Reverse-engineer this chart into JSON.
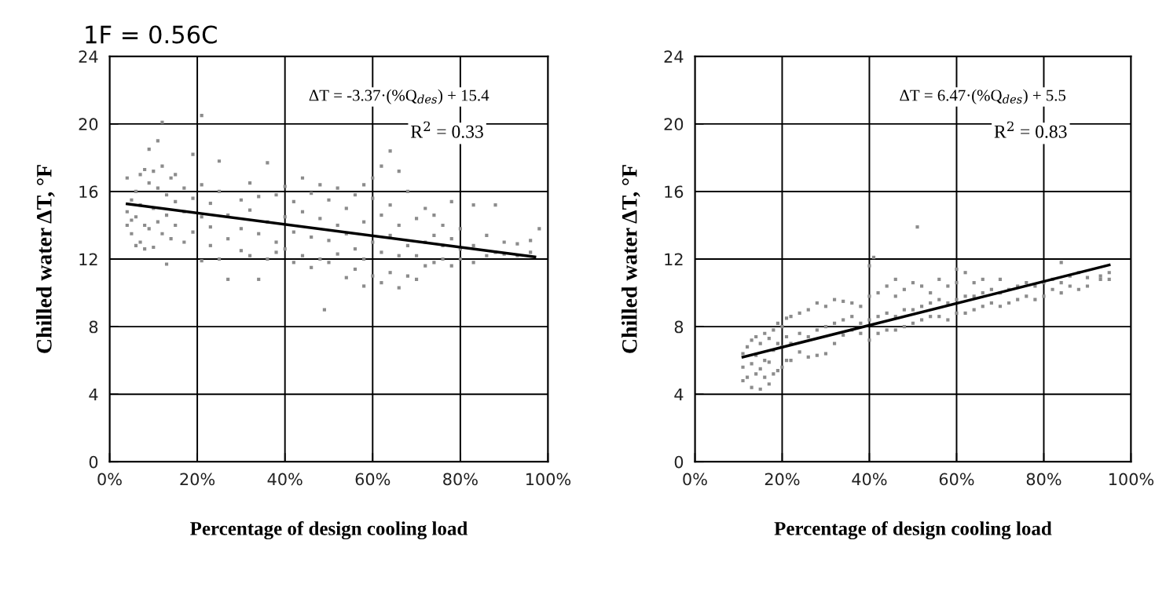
{
  "chart_data": [
    {
      "type": "scatter",
      "title": "1F = 0.56C",
      "xlabel": "Percentage of design cooling load",
      "ylabel": "Chilled water ΔT, °F",
      "xlim": [
        0,
        100
      ],
      "ylim": [
        0,
        24
      ],
      "xticks": [
        {
          "value": 0,
          "label": "0%"
        },
        {
          "value": 20,
          "label": "20%"
        },
        {
          "value": 40,
          "label": "40%"
        },
        {
          "value": 60,
          "label": "60%"
        },
        {
          "value": 80,
          "label": "80%"
        },
        {
          "value": 100,
          "label": "100%"
        }
      ],
      "yticks": [
        0,
        4,
        8,
        12,
        16,
        20,
        24
      ],
      "grid": true,
      "annotations": [
        "ΔT = -3.37·(%Q$_{des}$) + 15.4",
        "R$^{2}$ = 0.33"
      ],
      "series": [
        {
          "color": "#8c8c8c",
          "marker": "square",
          "x": [
            4,
            4,
            4,
            5,
            5,
            5,
            6,
            6,
            6,
            7,
            7,
            7,
            8,
            8,
            8,
            9,
            9,
            9,
            10,
            10,
            10,
            11,
            11,
            11,
            12,
            12,
            12,
            13,
            13,
            13,
            14,
            14,
            15,
            15,
            15,
            17,
            17,
            17,
            19,
            19,
            19,
            21,
            21,
            21,
            21,
            23,
            23,
            23,
            25,
            25,
            25,
            27,
            27,
            27,
            30,
            30,
            30,
            32,
            32,
            32,
            34,
            34,
            34,
            36,
            36,
            36,
            38,
            38,
            38,
            40,
            40,
            40,
            42,
            42,
            42,
            44,
            44,
            44,
            46,
            46,
            46,
            48,
            48,
            48,
            49,
            50,
            50,
            50,
            52,
            52,
            52,
            54,
            54,
            54,
            56,
            56,
            56,
            58,
            58,
            58,
            58,
            60,
            60,
            60,
            60,
            62,
            62,
            62,
            62,
            64,
            64,
            64,
            64,
            66,
            66,
            66,
            66,
            68,
            68,
            68,
            70,
            70,
            70,
            72,
            72,
            72,
            74,
            74,
            74,
            76,
            76,
            76,
            78,
            78,
            78,
            80,
            80,
            80,
            83,
            83,
            83,
            86,
            86,
            88,
            88,
            90,
            90,
            93,
            93,
            96,
            96,
            98
          ],
          "values": [
            14.0,
            14.8,
            16.8,
            13.5,
            15.5,
            14.3,
            12.8,
            16.0,
            14.5,
            13.0,
            17.0,
            15.2,
            12.6,
            17.3,
            14.0,
            13.8,
            16.5,
            18.5,
            12.7,
            15.0,
            17.2,
            14.2,
            16.2,
            19.0,
            13.5,
            17.5,
            20.1,
            11.7,
            15.8,
            14.6,
            13.2,
            16.8,
            14.0,
            17.0,
            15.4,
            13.0,
            16.2,
            14.8,
            13.6,
            15.6,
            18.2,
            11.9,
            14.5,
            16.4,
            20.5,
            12.8,
            15.3,
            13.9,
            12.0,
            16.0,
            17.8,
            13.2,
            14.6,
            10.8,
            12.5,
            15.5,
            13.8,
            12.2,
            14.9,
            16.5,
            10.8,
            13.5,
            15.7,
            12.0,
            14.2,
            17.7,
            13.0,
            15.8,
            12.4,
            12.6,
            14.5,
            16.3,
            11.8,
            13.6,
            15.4,
            12.2,
            14.8,
            16.8,
            11.5,
            13.3,
            15.9,
            12.0,
            14.4,
            16.4,
            9.0,
            11.8,
            13.1,
            15.5,
            12.3,
            14.0,
            16.2,
            10.9,
            13.5,
            15.0,
            11.4,
            12.6,
            15.8,
            10.4,
            12.0,
            14.2,
            16.4,
            11.0,
            13.0,
            15.6,
            16.8,
            10.6,
            12.4,
            14.6,
            17.5,
            11.2,
            13.4,
            15.2,
            18.4,
            10.3,
            12.2,
            14.0,
            17.2,
            11.0,
            12.8,
            16.0,
            10.8,
            12.2,
            14.4,
            11.6,
            13.0,
            15.0,
            11.8,
            13.4,
            14.6,
            12.0,
            12.8,
            14.0,
            11.6,
            13.2,
            15.4,
            12.0,
            12.6,
            13.8,
            11.8,
            12.8,
            15.2,
            12.2,
            13.4,
            12.4,
            15.2,
            12.3,
            13.0,
            12.2,
            12.9,
            12.4,
            13.1,
            13.8
          ]
        },
        {
          "type": "line",
          "color": "#000000",
          "x": [
            4,
            97
          ],
          "values": [
            15.27,
            12.13
          ]
        }
      ]
    },
    {
      "type": "scatter",
      "xlabel": "Percentage of design cooling load",
      "ylabel": "Chilled water ΔT, °F",
      "xlim": [
        0,
        100
      ],
      "ylim": [
        0,
        24
      ],
      "xticks": [
        {
          "value": 0,
          "label": "0%"
        },
        {
          "value": 20,
          "label": "20%"
        },
        {
          "value": 40,
          "label": "40%"
        },
        {
          "value": 60,
          "label": "60%"
        },
        {
          "value": 80,
          "label": "80%"
        },
        {
          "value": 100,
          "label": "100%"
        }
      ],
      "yticks": [
        0,
        4,
        8,
        12,
        16,
        20,
        24
      ],
      "grid": true,
      "annotations": [
        "ΔT = 6.47·(%Q$_{des}$) + 5.5",
        "R$^{2}$ = 0.83"
      ],
      "series": [
        {
          "color": "#8c8c8c",
          "marker": "square",
          "x": [
            11,
            11,
            11,
            12,
            12,
            13,
            13,
            13,
            14,
            14,
            14,
            15,
            15,
            15,
            16,
            16,
            16,
            17,
            17,
            17,
            18,
            18,
            18,
            19,
            19,
            19,
            20,
            20,
            20,
            21,
            21,
            21,
            22,
            22,
            22,
            24,
            24,
            24,
            26,
            26,
            26,
            28,
            28,
            28,
            30,
            30,
            30,
            32,
            32,
            32,
            34,
            34,
            34,
            36,
            36,
            36,
            38,
            38,
            38,
            40,
            40,
            40,
            40,
            41,
            42,
            42,
            42,
            44,
            44,
            44,
            46,
            46,
            46,
            46,
            48,
            48,
            48,
            50,
            50,
            50,
            51,
            52,
            52,
            52,
            54,
            54,
            54,
            56,
            56,
            56,
            58,
            58,
            58,
            60,
            60,
            60,
            60,
            62,
            62,
            62,
            64,
            64,
            64,
            66,
            66,
            66,
            68,
            68,
            70,
            70,
            70,
            72,
            72,
            74,
            74,
            76,
            76,
            78,
            78,
            80,
            80,
            82,
            82,
            84,
            84,
            84,
            86,
            86,
            88,
            88,
            90,
            90,
            93,
            93,
            95,
            95
          ],
          "values": [
            4.8,
            5.6,
            6.4,
            5.0,
            6.8,
            4.4,
            5.8,
            7.2,
            5.2,
            6.3,
            7.4,
            4.3,
            5.5,
            7.0,
            5.0,
            6.0,
            7.6,
            4.6,
            5.9,
            7.3,
            5.2,
            6.6,
            7.8,
            5.4,
            7.0,
            8.2,
            5.6,
            6.8,
            8.0,
            6.0,
            7.4,
            8.5,
            6.0,
            7.0,
            8.6,
            6.5,
            7.6,
            8.8,
            6.2,
            7.4,
            9.0,
            6.3,
            7.8,
            9.4,
            6.4,
            8.0,
            9.2,
            7.0,
            8.2,
            9.6,
            7.5,
            8.4,
            9.5,
            7.8,
            8.6,
            9.4,
            7.6,
            8.2,
            9.2,
            7.2,
            8.4,
            9.8,
            11.6,
            12.1,
            7.6,
            8.6,
            10.0,
            7.8,
            8.8,
            10.4,
            7.8,
            8.6,
            9.8,
            10.8,
            8.0,
            9.0,
            10.2,
            8.2,
            9.0,
            10.6,
            13.9,
            8.4,
            9.2,
            10.4,
            8.6,
            9.4,
            10.0,
            8.6,
            9.6,
            10.8,
            8.4,
            9.4,
            10.4,
            8.8,
            9.6,
            10.6,
            11.4,
            8.8,
            9.8,
            11.2,
            9.0,
            9.8,
            10.6,
            9.2,
            10.0,
            10.8,
            9.4,
            10.2,
            9.2,
            10.0,
            10.8,
            9.4,
            10.2,
            9.6,
            10.4,
            9.8,
            10.6,
            9.6,
            10.4,
            9.8,
            10.6,
            10.2,
            10.8,
            10.0,
            10.6,
            11.8,
            10.4,
            11.0,
            10.2,
            11.2,
            10.4,
            10.9,
            10.8,
            11.0,
            10.8,
            11.2
          ]
        },
        {
          "type": "line",
          "color": "#000000",
          "x": [
            11,
            95
          ],
          "values": [
            6.2,
            11.65
          ]
        }
      ]
    }
  ]
}
